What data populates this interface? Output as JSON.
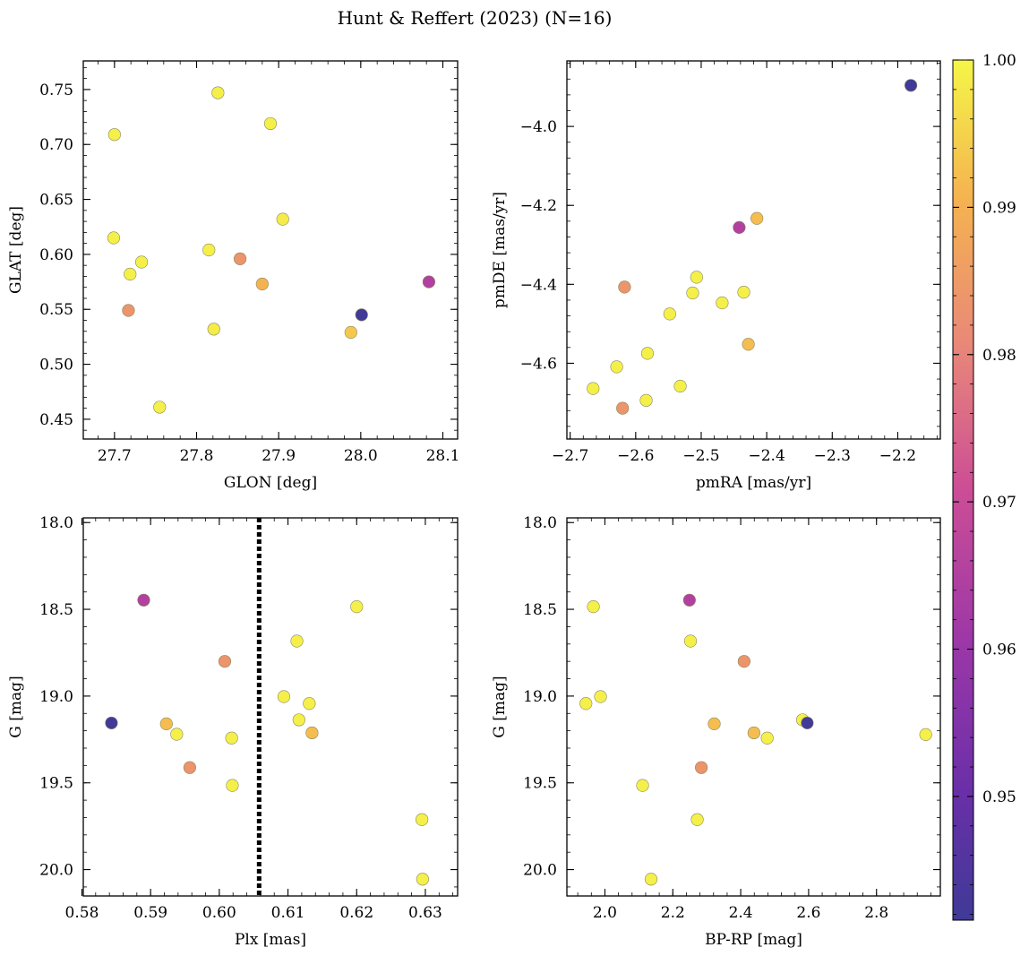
{
  "figure": {
    "title": "Hunt & Reffert (2023) (N=16)"
  },
  "colorbar": {
    "range": [
      0.9416,
      1.0
    ],
    "tick_labels": [
      "0.95",
      "0.96",
      "0.97",
      "0.98",
      "0.99",
      "1.00"
    ],
    "ticks": [
      0.95,
      0.96,
      0.97,
      0.98,
      0.99,
      1.0
    ],
    "colormap": "plasma",
    "colors": [
      "#3f3a97",
      "#8c2fae",
      "#cc4d96",
      "#e98878",
      "#f5b350",
      "#f5f648"
    ]
  },
  "chart_data": [
    {
      "type": "scatter",
      "xlabel": "GLON [deg]",
      "ylabel": "GLAT [deg]",
      "xlim": [
        27.662,
        28.118
      ],
      "ylim": [
        0.432,
        0.776
      ],
      "xticks": [
        27.7,
        27.8,
        27.9,
        28.0,
        28.1
      ],
      "xtick_labels": [
        "27.7",
        "27.8",
        "27.9",
        "28.0",
        "28.1"
      ],
      "yticks": [
        0.45,
        0.5,
        0.55,
        0.6,
        0.65,
        0.7,
        0.75
      ],
      "ytick_labels": [
        "0.45",
        "0.50",
        "0.55",
        "0.60",
        "0.65",
        "0.70",
        "0.75"
      ],
      "points": [
        {
          "x": 27.7,
          "y": 0.709,
          "c": 0.999
        },
        {
          "x": 27.826,
          "y": 0.747,
          "c": 0.999
        },
        {
          "x": 27.89,
          "y": 0.719,
          "c": 0.999
        },
        {
          "x": 27.905,
          "y": 0.632,
          "c": 0.998
        },
        {
          "x": 27.699,
          "y": 0.615,
          "c": 0.999
        },
        {
          "x": 27.815,
          "y": 0.604,
          "c": 0.999
        },
        {
          "x": 27.733,
          "y": 0.593,
          "c": 0.999
        },
        {
          "x": 27.719,
          "y": 0.582,
          "c": 0.999
        },
        {
          "x": 27.853,
          "y": 0.596,
          "c": 0.98
        },
        {
          "x": 27.88,
          "y": 0.573,
          "c": 0.988
        },
        {
          "x": 28.083,
          "y": 0.575,
          "c": 0.96
        },
        {
          "x": 27.717,
          "y": 0.549,
          "c": 0.98
        },
        {
          "x": 28.001,
          "y": 0.545,
          "c": 0.942
        },
        {
          "x": 27.821,
          "y": 0.532,
          "c": 0.998
        },
        {
          "x": 27.988,
          "y": 0.529,
          "c": 0.992
        },
        {
          "x": 27.755,
          "y": 0.461,
          "c": 0.999
        }
      ]
    },
    {
      "type": "scatter",
      "xlabel": "pmRA [mas/yr]",
      "ylabel": "pmDE [mas/yr]",
      "xlim": [
        -2.705,
        -2.135
      ],
      "ylim": [
        -4.792,
        -3.834
      ],
      "xticks": [
        -2.7,
        -2.6,
        -2.5,
        -2.4,
        -2.3,
        -2.2
      ],
      "xtick_labels": [
        "−2.7",
        "−2.6",
        "−2.5",
        "−2.4",
        "−2.3",
        "−2.2"
      ],
      "yticks": [
        -4.6,
        -4.4,
        -4.2,
        -4.0
      ],
      "ytick_labels": [
        "−4.6",
        "−4.4",
        "−4.2",
        "−4.0"
      ],
      "points": [
        {
          "x": -2.18,
          "y": -3.896,
          "c": 0.942
        },
        {
          "x": -2.442,
          "y": -4.256,
          "c": 0.96
        },
        {
          "x": -2.415,
          "y": -4.233,
          "c": 0.99
        },
        {
          "x": -2.507,
          "y": -4.382,
          "c": 0.999
        },
        {
          "x": -2.513,
          "y": -4.422,
          "c": 0.999
        },
        {
          "x": -2.435,
          "y": -4.42,
          "c": 0.999
        },
        {
          "x": -2.617,
          "y": -4.407,
          "c": 0.98
        },
        {
          "x": -2.468,
          "y": -4.447,
          "c": 0.999
        },
        {
          "x": -2.548,
          "y": -4.475,
          "c": 0.999
        },
        {
          "x": -2.428,
          "y": -4.552,
          "c": 0.99
        },
        {
          "x": -2.582,
          "y": -4.575,
          "c": 0.999
        },
        {
          "x": -2.629,
          "y": -4.609,
          "c": 0.999
        },
        {
          "x": -2.532,
          "y": -4.658,
          "c": 0.999
        },
        {
          "x": -2.665,
          "y": -4.664,
          "c": 0.999
        },
        {
          "x": -2.584,
          "y": -4.694,
          "c": 0.999
        },
        {
          "x": -2.62,
          "y": -4.714,
          "c": 0.98
        }
      ]
    },
    {
      "type": "scatter",
      "xlabel": "Plx [mas]",
      "ylabel": "G [mag]",
      "xlim": [
        0.5802,
        0.6347
      ],
      "ylim": [
        20.152,
        17.973
      ],
      "y_inverted": true,
      "vline_x": 0.6058,
      "xticks": [
        0.58,
        0.59,
        0.6,
        0.61,
        0.62,
        0.63
      ],
      "xtick_labels": [
        "0.58",
        "0.59",
        "0.60",
        "0.61",
        "0.62",
        "0.63"
      ],
      "yticks": [
        18.0,
        18.5,
        19.0,
        19.5,
        20.0
      ],
      "ytick_labels": [
        "18.0",
        "18.5",
        "19.0",
        "19.5",
        "20.0"
      ],
      "points": [
        {
          "x": 0.589,
          "y": 18.447,
          "c": 0.96
        },
        {
          "x": 0.62,
          "y": 18.485,
          "c": 0.999
        },
        {
          "x": 0.6113,
          "y": 18.683,
          "c": 0.999
        },
        {
          "x": 0.6008,
          "y": 18.8,
          "c": 0.98
        },
        {
          "x": 0.6094,
          "y": 19.003,
          "c": 0.999
        },
        {
          "x": 0.6131,
          "y": 19.043,
          "c": 0.999
        },
        {
          "x": 0.5843,
          "y": 19.155,
          "c": 0.942
        },
        {
          "x": 0.6116,
          "y": 19.137,
          "c": 0.999
        },
        {
          "x": 0.5923,
          "y": 19.16,
          "c": 0.99
        },
        {
          "x": 0.5938,
          "y": 19.22,
          "c": 0.999
        },
        {
          "x": 0.6135,
          "y": 19.212,
          "c": 0.99
        },
        {
          "x": 0.6018,
          "y": 19.242,
          "c": 0.999
        },
        {
          "x": 0.5957,
          "y": 19.412,
          "c": 0.98
        },
        {
          "x": 0.6019,
          "y": 19.515,
          "c": 0.999
        },
        {
          "x": 0.6295,
          "y": 19.712,
          "c": 0.999
        },
        {
          "x": 0.6296,
          "y": 20.055,
          "c": 0.999
        }
      ]
    },
    {
      "type": "scatter",
      "xlabel": "BP-RP [mag]",
      "ylabel": "G [mag]",
      "xlim": [
        1.888,
        2.988
      ],
      "ylim": [
        20.152,
        17.973
      ],
      "y_inverted": true,
      "xticks": [
        2.0,
        2.2,
        2.4,
        2.6,
        2.8
      ],
      "xtick_labels": [
        "2.0",
        "2.2",
        "2.4",
        "2.6",
        "2.8"
      ],
      "yticks": [
        18.0,
        18.5,
        19.0,
        19.5,
        20.0
      ],
      "ytick_labels": [
        "18.0",
        "18.5",
        "19.0",
        "19.5",
        "20.0"
      ],
      "points": [
        {
          "x": 2.249,
          "y": 18.447,
          "c": 0.96
        },
        {
          "x": 1.966,
          "y": 18.485,
          "c": 0.999
        },
        {
          "x": 2.252,
          "y": 18.683,
          "c": 0.999
        },
        {
          "x": 2.41,
          "y": 18.8,
          "c": 0.98
        },
        {
          "x": 1.987,
          "y": 19.003,
          "c": 0.999
        },
        {
          "x": 1.944,
          "y": 19.043,
          "c": 0.999
        },
        {
          "x": 2.582,
          "y": 19.137,
          "c": 0.999
        },
        {
          "x": 2.596,
          "y": 19.155,
          "c": 0.942
        },
        {
          "x": 2.322,
          "y": 19.16,
          "c": 0.99
        },
        {
          "x": 2.439,
          "y": 19.212,
          "c": 0.99
        },
        {
          "x": 2.945,
          "y": 19.222,
          "c": 0.999
        },
        {
          "x": 2.478,
          "y": 19.242,
          "c": 0.999
        },
        {
          "x": 2.284,
          "y": 19.412,
          "c": 0.98
        },
        {
          "x": 2.111,
          "y": 19.515,
          "c": 0.999
        },
        {
          "x": 2.272,
          "y": 19.712,
          "c": 0.999
        },
        {
          "x": 2.136,
          "y": 20.055,
          "c": 0.999
        }
      ]
    }
  ]
}
